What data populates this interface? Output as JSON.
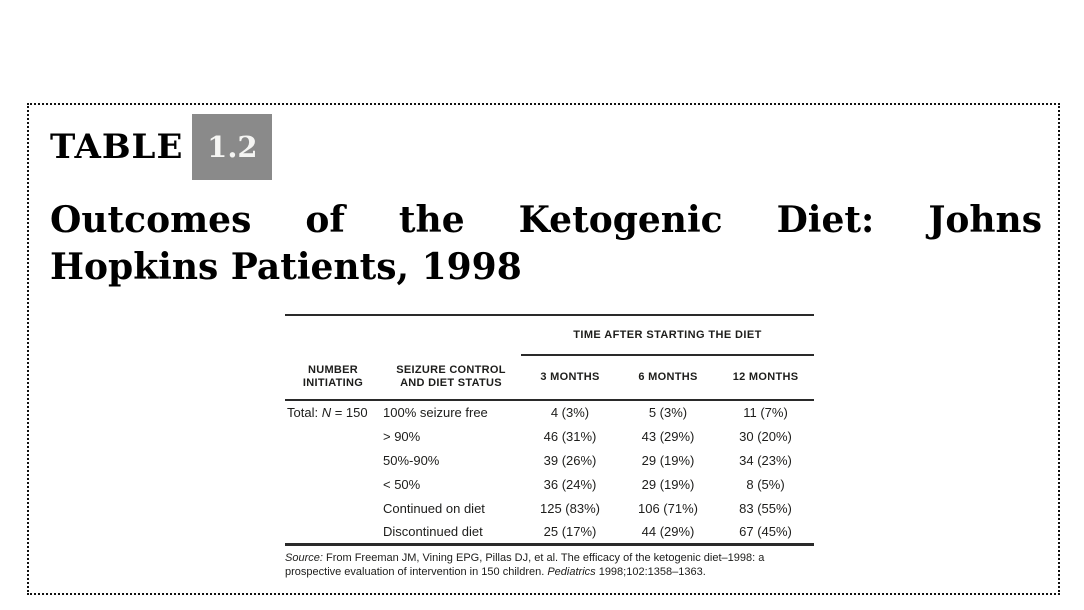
{
  "page": {
    "tag_word": "TABLE",
    "tag_number": "1.2",
    "title_line1": "Outcomes of the Ketogenic Diet: Johns",
    "title_line2": "Hopkins Patients, 1998"
  },
  "colors": {
    "tag_box_gray": "#8a8a8a",
    "text": "#1d1d1b",
    "rule": "#2a2a2a",
    "background": "#ffffff"
  },
  "table": {
    "span_header": "TIME AFTER STARTING THE DIET",
    "col_headers": {
      "c1": "NUMBER\nINITIATING",
      "c2": "SEIZURE CONTROL\nAND DIET STATUS",
      "c3": "3 MONTHS",
      "c4": "6 MONTHS",
      "c5": "12 MONTHS"
    },
    "row0": {
      "c1_pre": "Total: ",
      "c1_italic": "N",
      "c1_post": " = 150",
      "c2": "100% seizure free",
      "c3": "4 (3%)",
      "c4": "5 (3%)",
      "c5": "11 (7%)"
    },
    "rows": [
      {
        "c2": "> 90%",
        "c3": "46 (31%)",
        "c4": "43 (29%)",
        "c5": "30 (20%)"
      },
      {
        "c2": "50%-90%",
        "c3": "39 (26%)",
        "c4": "29 (19%)",
        "c5": "34 (23%)"
      },
      {
        "c2": "< 50%",
        "c3": "36 (24%)",
        "c4": "29 (19%)",
        "c5": "8 (5%)"
      },
      {
        "c2": "Continued on diet",
        "c3": "125 (83%)",
        "c4": "106 (71%)",
        "c5": "83 (55%)"
      },
      {
        "c2": "Discontinued diet",
        "c3": "25 (17%)",
        "c4": "44 (29%)",
        "c5": "67 (45%)"
      }
    ],
    "source": {
      "label": "Source:",
      "text1": " From Freeman JM, Vining EPG, Pillas DJ, et al. The efficacy of the ketogenic diet–1998: a prospective evaluation of intervention in 150 children. ",
      "journal": "Pediatrics",
      "text2": " 1998;102:1358–1363."
    }
  }
}
